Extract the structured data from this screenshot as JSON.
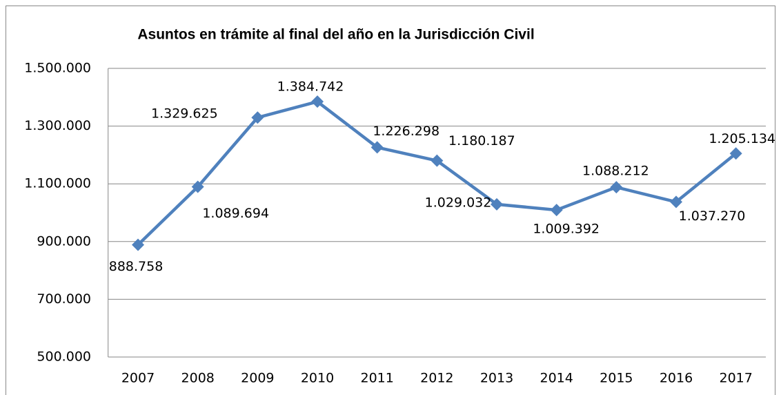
{
  "chart_data": {
    "type": "line",
    "title": "Asuntos en trámite al final del año en la Jurisdicción Civil",
    "categories": [
      "2007",
      "2008",
      "2009",
      "2010",
      "2011",
      "2012",
      "2013",
      "2014",
      "2015",
      "2016",
      "2017"
    ],
    "series": [
      {
        "name": "Asuntos en trámite",
        "color": "#4f81bd",
        "values": [
          888758,
          1089694,
          1329625,
          1384742,
          1226298,
          1180187,
          1029032,
          1009392,
          1088212,
          1037270,
          1205134
        ],
        "value_labels": [
          "888.758",
          "1.089.694",
          "1.329.625",
          "1.384.742",
          "1.226.298",
          "1.180.187",
          "1.029.032",
          "1.009.392",
          "1.088.212",
          "1.037.270",
          "1.205.134"
        ]
      }
    ],
    "ylim": [
      500000,
      1500000
    ],
    "yticks": [
      {
        "value": 500000,
        "label": "500.000"
      },
      {
        "value": 700000,
        "label": "700.000"
      },
      {
        "value": 900000,
        "label": "900.000"
      },
      {
        "value": 1100000,
        "label": "1.100.000"
      },
      {
        "value": 1300000,
        "label": "1.300.000"
      },
      {
        "value": 1500000,
        "label": "1.500.000"
      }
    ],
    "grid": true
  }
}
